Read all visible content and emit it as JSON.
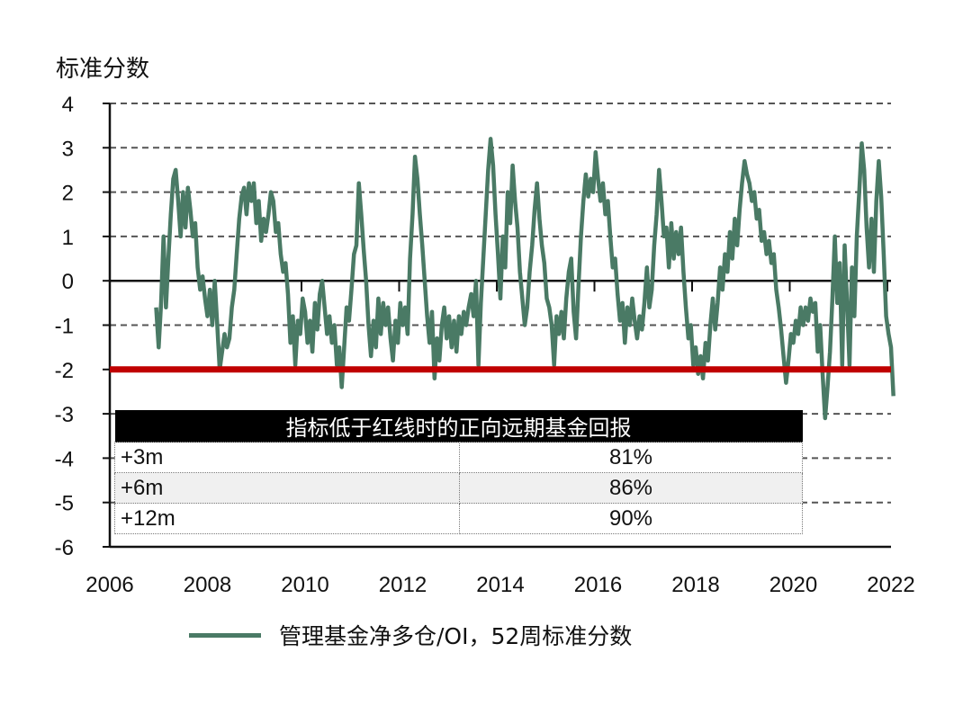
{
  "chart_data": {
    "type": "line",
    "ylabel": "标准分数",
    "xlim": [
      2006,
      2022
    ],
    "ylim": [
      -6,
      4
    ],
    "x_ticks": [
      2006,
      2008,
      2010,
      2012,
      2014,
      2016,
      2018,
      2020,
      2022
    ],
    "y_ticks": [
      4,
      3,
      2,
      1,
      0,
      -1,
      -2,
      -3,
      -4,
      -5,
      -6
    ],
    "grid": "dashed-horizontal",
    "threshold": {
      "value": -2,
      "color": "#c00000"
    },
    "series": [
      {
        "name": "管理基金净多仓/OI，52周标准分数",
        "color": "#4a7a65",
        "points": [
          [
            2006.95,
            -0.6
          ],
          [
            2007.0,
            -1.5
          ],
          [
            2007.05,
            -0.5
          ],
          [
            2007.1,
            1.0
          ],
          [
            2007.15,
            -0.6
          ],
          [
            2007.2,
            0.5
          ],
          [
            2007.25,
            1.5
          ],
          [
            2007.3,
            2.3
          ],
          [
            2007.35,
            2.5
          ],
          [
            2007.4,
            1.8
          ],
          [
            2007.45,
            1.0
          ],
          [
            2007.5,
            2.0
          ],
          [
            2007.55,
            1.2
          ],
          [
            2007.6,
            2.1
          ],
          [
            2007.65,
            1.6
          ],
          [
            2007.7,
            1.0
          ],
          [
            2007.75,
            1.3
          ],
          [
            2007.8,
            0.3
          ],
          [
            2007.85,
            -0.2
          ],
          [
            2007.9,
            0.1
          ],
          [
            2007.95,
            -0.4
          ],
          [
            2008.0,
            -0.8
          ],
          [
            2008.05,
            -0.2
          ],
          [
            2008.1,
            -1.0
          ],
          [
            2008.15,
            0.0
          ],
          [
            2008.2,
            -1.0
          ],
          [
            2008.25,
            -2.0
          ],
          [
            2008.3,
            -1.6
          ],
          [
            2008.35,
            -1.2
          ],
          [
            2008.4,
            -1.5
          ],
          [
            2008.45,
            -1.3
          ],
          [
            2008.5,
            -0.6
          ],
          [
            2008.55,
            -0.2
          ],
          [
            2008.6,
            0.6
          ],
          [
            2008.65,
            1.4
          ],
          [
            2008.7,
            1.9
          ],
          [
            2008.75,
            2.1
          ],
          [
            2008.8,
            1.5
          ],
          [
            2008.85,
            2.2
          ],
          [
            2008.9,
            1.8
          ],
          [
            2008.95,
            2.2
          ],
          [
            2009.0,
            1.3
          ],
          [
            2009.05,
            1.8
          ],
          [
            2009.1,
            0.9
          ],
          [
            2009.15,
            1.4
          ],
          [
            2009.2,
            1.1
          ],
          [
            2009.25,
            1.5
          ],
          [
            2009.3,
            2.0
          ],
          [
            2009.35,
            1.8
          ],
          [
            2009.4,
            1.1
          ],
          [
            2009.45,
            1.3
          ],
          [
            2009.5,
            0.6
          ],
          [
            2009.55,
            0.2
          ],
          [
            2009.6,
            0.4
          ],
          [
            2009.65,
            -0.3
          ],
          [
            2009.7,
            -1.4
          ],
          [
            2009.75,
            -0.8
          ],
          [
            2009.8,
            -1.9
          ],
          [
            2009.85,
            -0.9
          ],
          [
            2009.9,
            -1.2
          ],
          [
            2009.95,
            -0.4
          ],
          [
            2010.0,
            -0.7
          ],
          [
            2010.05,
            -1.4
          ],
          [
            2010.1,
            -0.9
          ],
          [
            2010.15,
            -1.6
          ],
          [
            2010.2,
            -0.5
          ],
          [
            2010.25,
            -1.1
          ],
          [
            2010.3,
            -0.3
          ],
          [
            2010.35,
            0.0
          ],
          [
            2010.4,
            -0.6
          ],
          [
            2010.45,
            -1.2
          ],
          [
            2010.5,
            -0.8
          ],
          [
            2010.55,
            -1.4
          ],
          [
            2010.6,
            -1.0
          ],
          [
            2010.65,
            -1.9
          ],
          [
            2010.7,
            -1.5
          ],
          [
            2010.75,
            -2.4
          ],
          [
            2010.8,
            -1.5
          ],
          [
            2010.85,
            -0.6
          ],
          [
            2010.9,
            -0.9
          ],
          [
            2010.95,
            -0.2
          ],
          [
            2011.0,
            0.6
          ],
          [
            2011.05,
            0.8
          ],
          [
            2011.1,
            2.2
          ],
          [
            2011.15,
            1.5
          ],
          [
            2011.2,
            0.7
          ],
          [
            2011.25,
            0.0
          ],
          [
            2011.3,
            -1.0
          ],
          [
            2011.35,
            -1.7
          ],
          [
            2011.4,
            -0.9
          ],
          [
            2011.45,
            -1.5
          ],
          [
            2011.5,
            -0.4
          ],
          [
            2011.55,
            -1.2
          ],
          [
            2011.6,
            -0.5
          ],
          [
            2011.65,
            -1.0
          ],
          [
            2011.7,
            -0.6
          ],
          [
            2011.75,
            -1.3
          ],
          [
            2011.8,
            -1.8
          ],
          [
            2011.85,
            -0.9
          ],
          [
            2011.9,
            -1.4
          ],
          [
            2011.95,
            -0.5
          ],
          [
            2012.0,
            -1.0
          ],
          [
            2012.05,
            -0.6
          ],
          [
            2012.1,
            -1.2
          ],
          [
            2012.15,
            0.5
          ],
          [
            2012.2,
            1.5
          ],
          [
            2012.25,
            2.8
          ],
          [
            2012.3,
            2.3
          ],
          [
            2012.35,
            1.5
          ],
          [
            2012.4,
            0.8
          ],
          [
            2012.45,
            0.0
          ],
          [
            2012.5,
            -0.8
          ],
          [
            2012.55,
            -1.4
          ],
          [
            2012.6,
            -0.7
          ],
          [
            2012.65,
            -2.2
          ],
          [
            2012.7,
            -1.3
          ],
          [
            2012.75,
            -1.8
          ],
          [
            2012.8,
            -1.0
          ],
          [
            2012.85,
            -0.6
          ],
          [
            2012.9,
            -1.3
          ],
          [
            2012.95,
            -0.8
          ],
          [
            2013.0,
            -1.5
          ],
          [
            2013.05,
            -0.9
          ],
          [
            2013.1,
            -1.6
          ],
          [
            2013.15,
            -0.8
          ],
          [
            2013.2,
            -1.2
          ],
          [
            2013.25,
            -0.7
          ],
          [
            2013.3,
            -1.0
          ],
          [
            2013.35,
            -0.6
          ],
          [
            2013.4,
            -0.3
          ],
          [
            2013.45,
            -0.8
          ],
          [
            2013.5,
            0.0
          ],
          [
            2013.55,
            -1.9
          ],
          [
            2013.6,
            -0.5
          ],
          [
            2013.65,
            0.5
          ],
          [
            2013.7,
            1.5
          ],
          [
            2013.75,
            2.5
          ],
          [
            2013.8,
            3.2
          ],
          [
            2013.85,
            2.6
          ],
          [
            2013.9,
            1.5
          ],
          [
            2013.95,
            0.6
          ],
          [
            2014.0,
            -0.4
          ],
          [
            2014.05,
            1.0
          ],
          [
            2014.1,
            0.3
          ],
          [
            2014.15,
            2.0
          ],
          [
            2014.2,
            1.3
          ],
          [
            2014.25,
            2.6
          ],
          [
            2014.3,
            1.8
          ],
          [
            2014.35,
            1.2
          ],
          [
            2014.4,
            0.2
          ],
          [
            2014.45,
            -0.4
          ],
          [
            2014.5,
            -1.0
          ],
          [
            2014.55,
            -0.6
          ],
          [
            2014.6,
            0.2
          ],
          [
            2014.65,
            0.8
          ],
          [
            2014.7,
            1.6
          ],
          [
            2014.75,
            2.2
          ],
          [
            2014.8,
            1.4
          ],
          [
            2014.85,
            0.8
          ],
          [
            2014.9,
            0.4
          ],
          [
            2014.95,
            -0.4
          ],
          [
            2015.0,
            -0.6
          ],
          [
            2015.05,
            -1.0
          ],
          [
            2015.1,
            -1.9
          ],
          [
            2015.15,
            -0.8
          ],
          [
            2015.2,
            -1.2
          ],
          [
            2015.25,
            -0.7
          ],
          [
            2015.3,
            -1.3
          ],
          [
            2015.35,
            -0.4
          ],
          [
            2015.4,
            0.2
          ],
          [
            2015.45,
            0.5
          ],
          [
            2015.5,
            -0.7
          ],
          [
            2015.55,
            -1.3
          ],
          [
            2015.6,
            -0.1
          ],
          [
            2015.65,
            1.0
          ],
          [
            2015.7,
            1.8
          ],
          [
            2015.75,
            2.4
          ],
          [
            2015.8,
            1.9
          ],
          [
            2015.85,
            2.3
          ],
          [
            2015.9,
            2.0
          ],
          [
            2015.95,
            2.9
          ],
          [
            2016.0,
            2.3
          ],
          [
            2016.05,
            1.8
          ],
          [
            2016.1,
            2.2
          ],
          [
            2016.15,
            1.5
          ],
          [
            2016.2,
            1.8
          ],
          [
            2016.25,
            1.0
          ],
          [
            2016.3,
            0.3
          ],
          [
            2016.35,
            0.5
          ],
          [
            2016.4,
            -0.3
          ],
          [
            2016.45,
            -0.9
          ],
          [
            2016.5,
            -0.5
          ],
          [
            2016.55,
            -1.4
          ],
          [
            2016.6,
            -0.6
          ],
          [
            2016.65,
            -1.0
          ],
          [
            2016.7,
            -0.4
          ],
          [
            2016.75,
            -0.9
          ],
          [
            2016.8,
            -1.3
          ],
          [
            2016.85,
            -0.8
          ],
          [
            2016.9,
            -1.1
          ],
          [
            2016.95,
            -0.5
          ],
          [
            2017.0,
            0.3
          ],
          [
            2017.05,
            -0.6
          ],
          [
            2017.1,
            -0.2
          ],
          [
            2017.15,
            0.8
          ],
          [
            2017.2,
            1.5
          ],
          [
            2017.25,
            2.5
          ],
          [
            2017.3,
            1.8
          ],
          [
            2017.35,
            1.0
          ],
          [
            2017.4,
            1.2
          ],
          [
            2017.45,
            0.3
          ],
          [
            2017.5,
            1.3
          ],
          [
            2017.55,
            0.5
          ],
          [
            2017.6,
            1.1
          ],
          [
            2017.65,
            0.6
          ],
          [
            2017.7,
            1.2
          ],
          [
            2017.75,
            0.2
          ],
          [
            2017.8,
            -0.6
          ],
          [
            2017.85,
            -1.3
          ],
          [
            2017.9,
            -1.0
          ],
          [
            2017.95,
            -1.9
          ],
          [
            2018.0,
            -1.5
          ],
          [
            2018.05,
            -2.1
          ],
          [
            2018.1,
            -1.7
          ],
          [
            2018.15,
            -2.2
          ],
          [
            2018.2,
            -1.4
          ],
          [
            2018.25,
            -1.8
          ],
          [
            2018.3,
            -1.0
          ],
          [
            2018.35,
            -0.4
          ],
          [
            2018.4,
            -1.1
          ],
          [
            2018.45,
            -0.5
          ],
          [
            2018.5,
            0.3
          ],
          [
            2018.55,
            -0.2
          ],
          [
            2018.6,
            0.6
          ],
          [
            2018.65,
            0.2
          ],
          [
            2018.7,
            1.1
          ],
          [
            2018.75,
            0.5
          ],
          [
            2018.8,
            1.4
          ],
          [
            2018.85,
            0.8
          ],
          [
            2018.9,
            1.6
          ],
          [
            2018.95,
            2.2
          ],
          [
            2019.0,
            2.7
          ],
          [
            2019.05,
            2.4
          ],
          [
            2019.1,
            2.2
          ],
          [
            2019.15,
            1.8
          ],
          [
            2019.2,
            2.0
          ],
          [
            2019.25,
            1.4
          ],
          [
            2019.3,
            1.6
          ],
          [
            2019.35,
            0.9
          ],
          [
            2019.4,
            1.1
          ],
          [
            2019.45,
            0.6
          ],
          [
            2019.5,
            0.9
          ],
          [
            2019.55,
            0.4
          ],
          [
            2019.6,
            0.6
          ],
          [
            2019.65,
            -0.2
          ],
          [
            2019.7,
            -0.6
          ],
          [
            2019.75,
            -1.1
          ],
          [
            2019.8,
            -1.7
          ],
          [
            2019.85,
            -2.3
          ],
          [
            2019.9,
            -1.8
          ],
          [
            2019.95,
            -1.2
          ],
          [
            2020.0,
            -1.4
          ],
          [
            2020.05,
            -0.9
          ],
          [
            2020.1,
            -1.2
          ],
          [
            2020.15,
            -0.6
          ],
          [
            2020.2,
            -1.0
          ],
          [
            2020.25,
            -0.6
          ],
          [
            2020.3,
            -0.9
          ],
          [
            2020.35,
            -0.4
          ],
          [
            2020.4,
            -0.7
          ],
          [
            2020.45,
            -0.5
          ],
          [
            2020.5,
            -1.6
          ],
          [
            2020.55,
            -1.0
          ],
          [
            2020.6,
            -2.1
          ],
          [
            2020.65,
            -3.1
          ],
          [
            2020.7,
            -2.4
          ],
          [
            2020.75,
            -1.6
          ],
          [
            2020.8,
            -0.4
          ],
          [
            2020.85,
            1.0
          ],
          [
            2020.9,
            -0.5
          ],
          [
            2020.95,
            0.4
          ],
          [
            2021.0,
            -1.9
          ],
          [
            2021.05,
            0.8
          ],
          [
            2021.1,
            -0.5
          ],
          [
            2021.15,
            -1.9
          ],
          [
            2021.2,
            0.3
          ],
          [
            2021.25,
            -0.8
          ],
          [
            2021.3,
            1.0
          ],
          [
            2021.35,
            2.0
          ],
          [
            2021.4,
            3.1
          ],
          [
            2021.45,
            2.5
          ],
          [
            2021.5,
            1.2
          ],
          [
            2021.55,
            0.3
          ],
          [
            2021.6,
            1.4
          ],
          [
            2021.65,
            0.2
          ],
          [
            2021.7,
            1.8
          ],
          [
            2021.75,
            2.7
          ],
          [
            2021.8,
            1.9
          ],
          [
            2021.85,
            0.6
          ],
          [
            2021.9,
            -0.8
          ],
          [
            2021.95,
            -1.2
          ],
          [
            2022.0,
            -1.5
          ],
          [
            2022.05,
            -2.6
          ]
        ]
      }
    ],
    "table": {
      "title": "指标低于红线时的正向远期基金回报",
      "rows": [
        {
          "period": "+3m",
          "value": "81%"
        },
        {
          "period": "+6m",
          "value": "86%"
        },
        {
          "period": "+12m",
          "value": "90%"
        }
      ]
    }
  }
}
